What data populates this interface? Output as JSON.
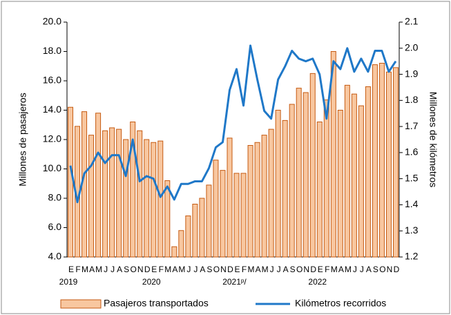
{
  "chart_data": {
    "type": "bar",
    "y_label": "Millones de pasajeros",
    "y2_label": "Millones de kilómetros",
    "categories": [
      "E",
      "F",
      "M",
      "A",
      "M",
      "J",
      "J",
      "A",
      "S",
      "O",
      "N",
      "D",
      "E",
      "F",
      "M",
      "A",
      "M",
      "J",
      "J",
      "A",
      "S",
      "O",
      "N",
      "D",
      "E",
      "F",
      "M",
      "A",
      "M",
      "J",
      "J",
      "A",
      "S",
      "O",
      "N",
      "D",
      "E",
      "F",
      "M",
      "A",
      "M",
      "J",
      "J",
      "A",
      "S",
      "O",
      "N",
      "D"
    ],
    "years": [
      "2019",
      "2020",
      "2021ᵖ/",
      "2022"
    ],
    "series": [
      {
        "name": "Pasajeros transportados",
        "type": "bar",
        "color": "#f8c7a0",
        "edge": "#c55a11",
        "values": [
          14.2,
          12.9,
          13.9,
          12.3,
          13.8,
          12.6,
          12.8,
          12.7,
          12.0,
          13.2,
          12.6,
          12.0,
          11.8,
          11.9,
          9.2,
          4.7,
          5.8,
          6.8,
          7.6,
          8.0,
          8.9,
          10.6,
          9.9,
          12.1,
          9.7,
          9.7,
          11.6,
          11.8,
          12.3,
          12.7,
          14.0,
          13.3,
          14.4,
          15.5,
          15.2,
          16.5,
          13.2,
          14.7,
          18.0,
          14.0,
          15.7,
          15.1,
          14.3,
          15.6,
          17.1,
          17.2,
          16.6,
          16.9
        ]
      },
      {
        "name": "Kilómetros recorridos",
        "type": "line",
        "axis": "y2",
        "color": "#1f78c8",
        "values": [
          1.55,
          1.41,
          1.52,
          1.55,
          1.6,
          1.56,
          1.59,
          1.59,
          1.51,
          1.65,
          1.49,
          1.51,
          1.5,
          1.43,
          1.47,
          1.42,
          1.48,
          1.48,
          1.49,
          1.49,
          1.54,
          1.62,
          1.64,
          1.84,
          1.92,
          1.78,
          2.01,
          1.88,
          1.76,
          1.73,
          1.88,
          1.93,
          1.99,
          1.96,
          1.95,
          1.96,
          1.9,
          1.73,
          1.95,
          1.92,
          2.0,
          1.91,
          1.96,
          1.91,
          1.99,
          1.99,
          1.91,
          1.95
        ]
      }
    ],
    "ylim": [
      4,
      20
    ],
    "yticks": [
      {
        "value": 4,
        "label": "4.0"
      },
      {
        "value": 6,
        "label": "6.0"
      },
      {
        "value": 8,
        "label": "8.0"
      },
      {
        "value": 10,
        "label": "10.0"
      },
      {
        "value": 12,
        "label": "12.0"
      },
      {
        "value": 14,
        "label": "14.0"
      },
      {
        "value": 16,
        "label": "16.0"
      },
      {
        "value": 18,
        "label": "18.0"
      },
      {
        "value": 20,
        "label": "20.0"
      }
    ],
    "y2lim": [
      1.2,
      2.1
    ],
    "y2ticks": [
      1.2,
      1.3,
      1.4,
      1.5,
      1.6,
      1.7,
      1.8,
      1.9,
      {
        "value": 2,
        "label": "2.0"
      },
      2.1
    ],
    "grid": false,
    "legend": "bottom"
  }
}
